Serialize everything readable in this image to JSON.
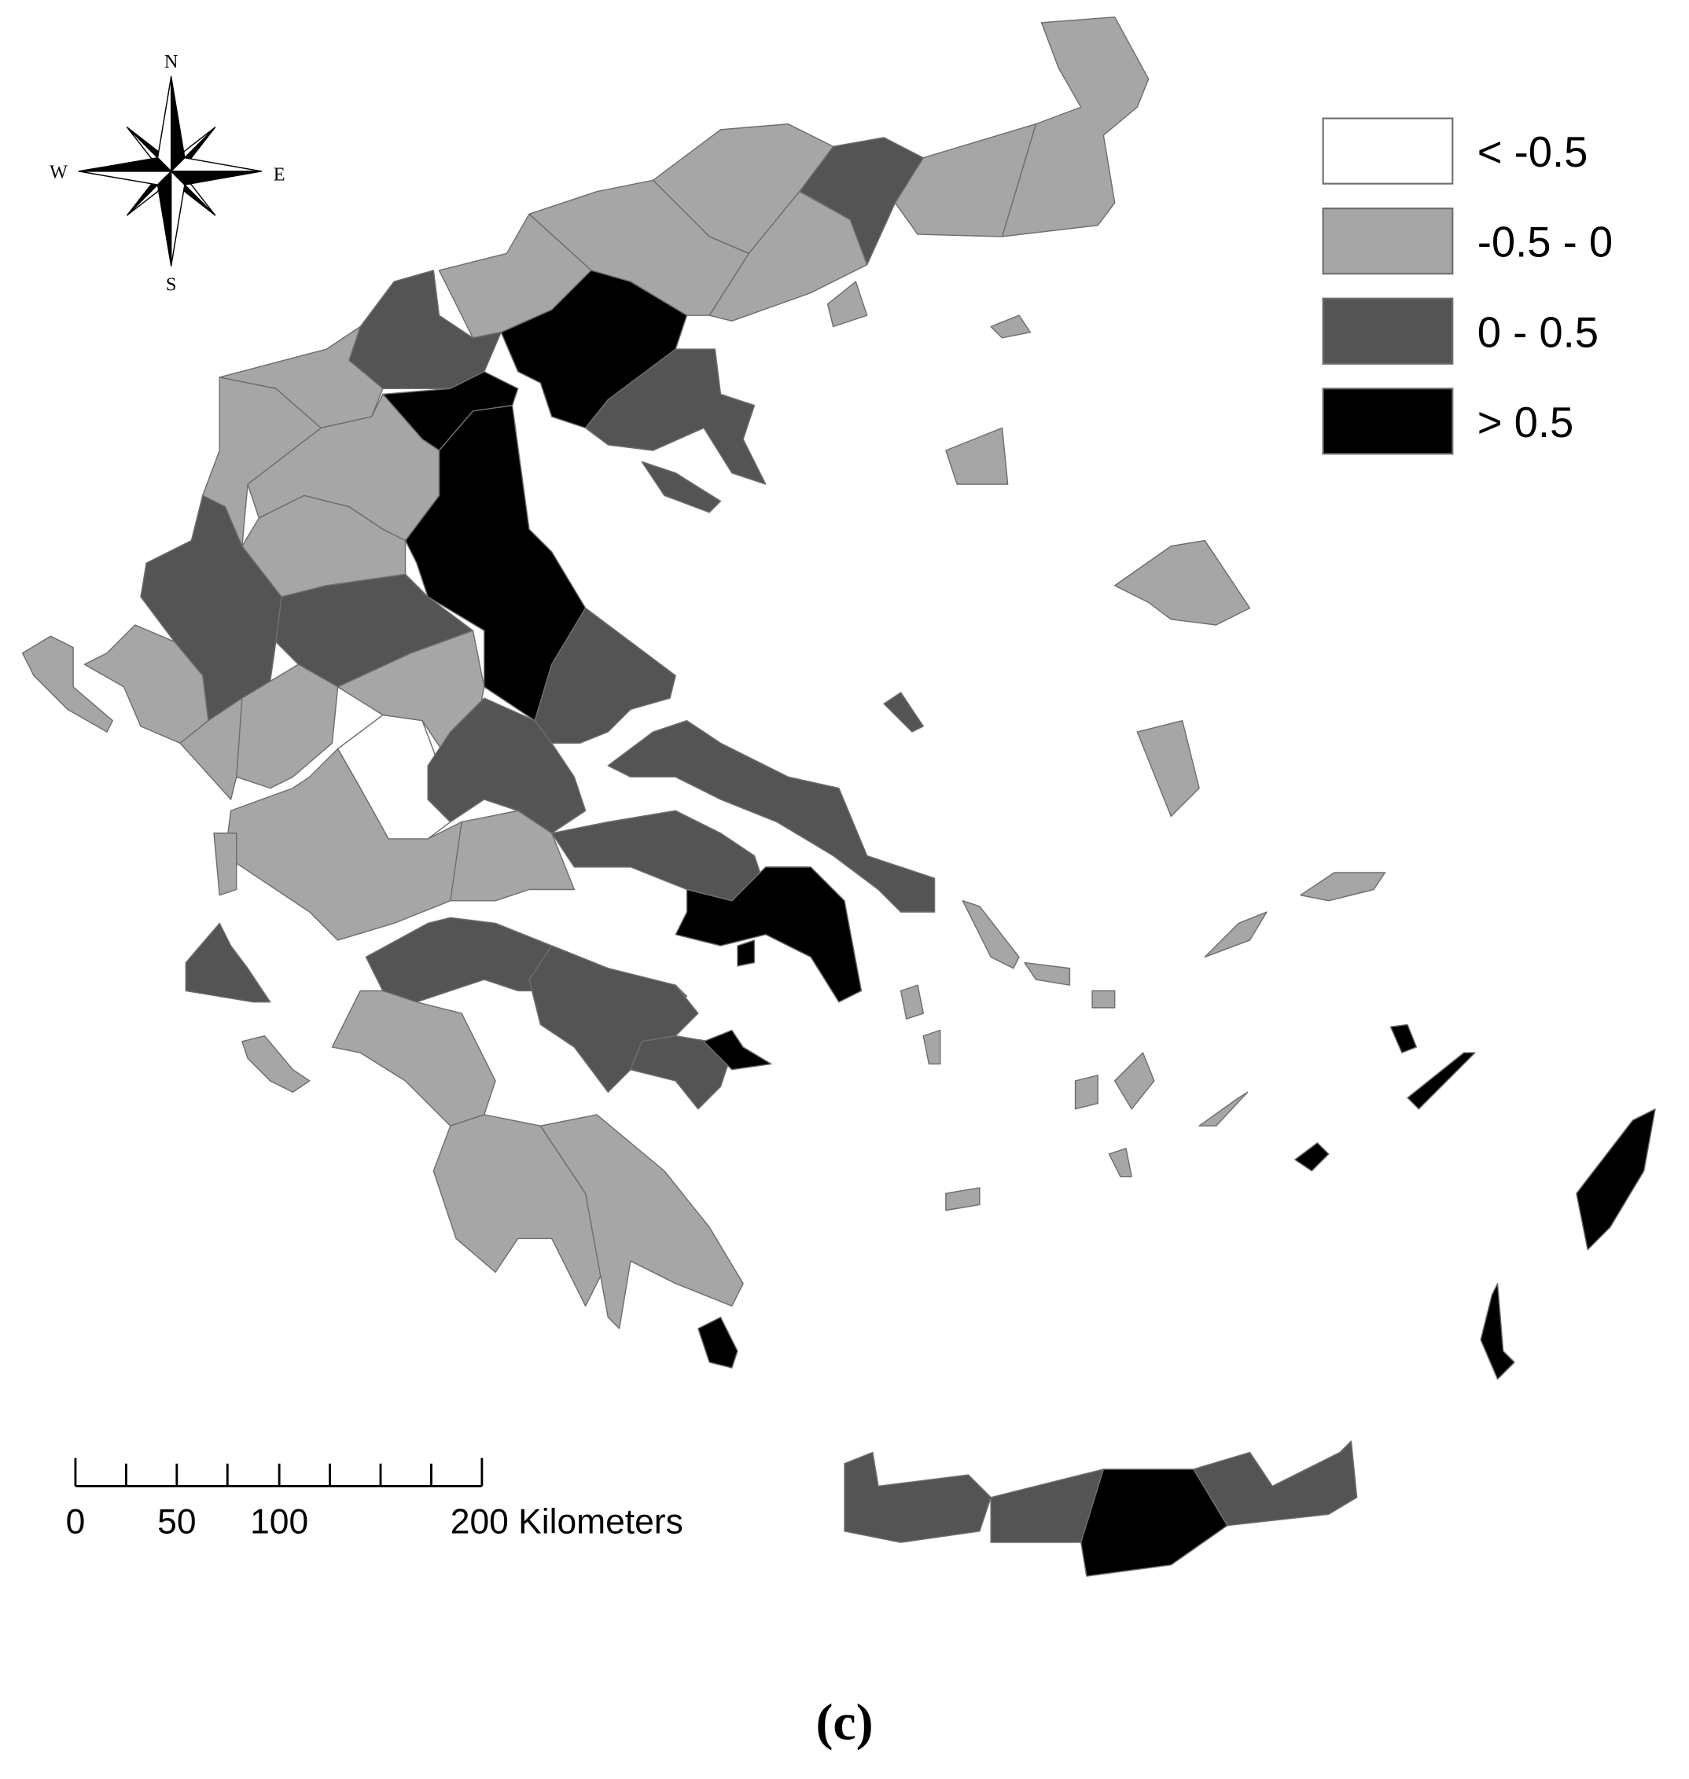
{
  "legend": {
    "items": [
      {
        "label": "< -0.5",
        "color": "#ffffff"
      },
      {
        "label": "-0.5 - 0",
        "color": "#a6a6a6"
      },
      {
        "label": "0 - 0.5",
        "color": "#545454"
      },
      {
        "label": "> 0.5",
        "color": "#000000"
      }
    ]
  },
  "compass": {
    "north": "N",
    "south": "S",
    "east": "E",
    "west": "W"
  },
  "scale_bar": {
    "labels": [
      "0",
      "50",
      "100",
      "200 Kilometers"
    ]
  },
  "caption": "(c)"
}
